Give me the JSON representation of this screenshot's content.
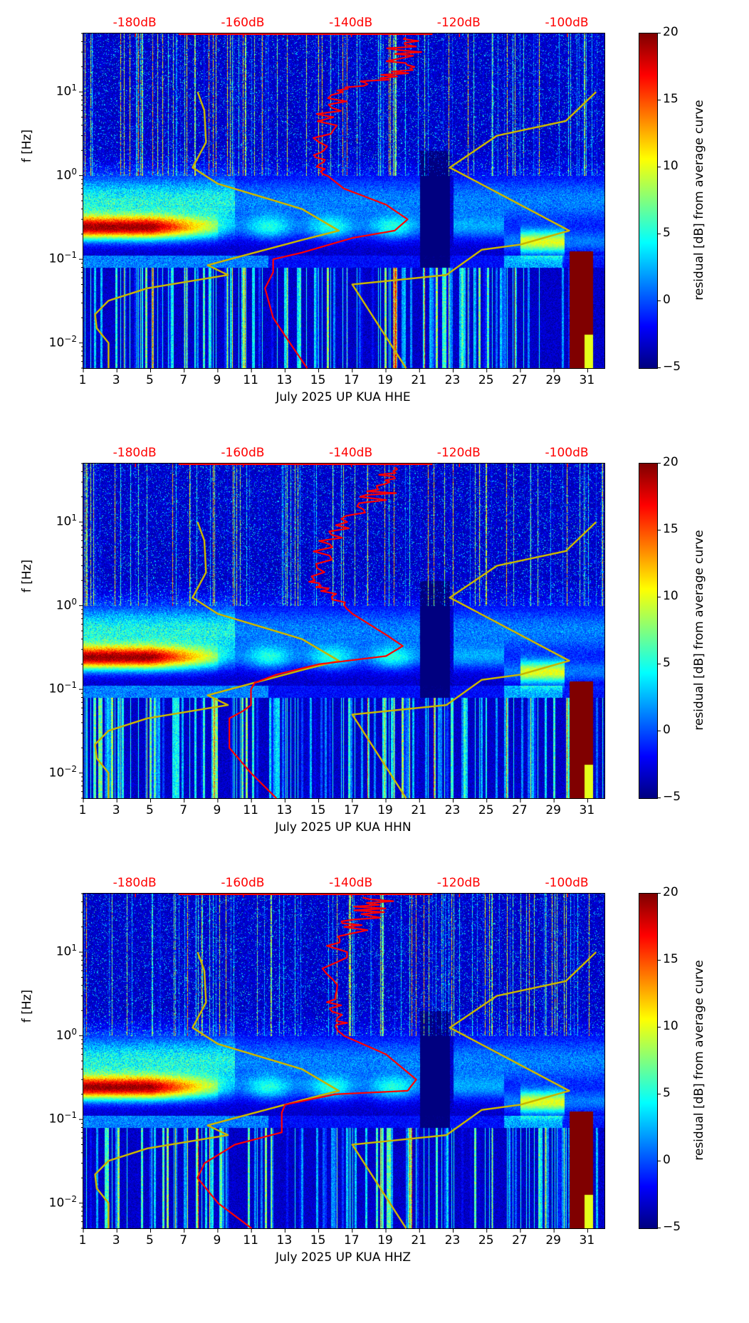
{
  "chart_data": [
    {
      "type": "heatmap",
      "title": "",
      "xlabel": "July 2025 UP KUA  HHE",
      "ylabel": "f [Hz]",
      "xlim": [
        1,
        32
      ],
      "ylim": [
        0.005,
        50
      ],
      "yscale": "log",
      "x_ticks": [
        "1",
        "3",
        "5",
        "7",
        "9",
        "11",
        "13",
        "15",
        "17",
        "19",
        "21",
        "23",
        "25",
        "27",
        "29",
        "31"
      ],
      "y_ticks": [
        {
          "value": 0.01,
          "base": "10",
          "exp": "−2"
        },
        {
          "value": 0.1,
          "base": "10",
          "exp": "−1"
        },
        {
          "value": 1,
          "base": "10",
          "exp": "0"
        },
        {
          "value": 10,
          "base": "10",
          "exp": "1"
        }
      ],
      "top_axis": {
        "labels": [
          "-180dB",
          "-160dB",
          "-140dB",
          "-120dB",
          "-100dB"
        ],
        "values": [
          -180,
          -160,
          -140,
          -120,
          -100
        ],
        "color": "#ff0000"
      },
      "colorbar": {
        "label": "residual [dB] from average curve",
        "range": [
          -5,
          20
        ],
        "ticks": [
          "−5",
          "0",
          "5",
          "10",
          "15",
          "20"
        ],
        "cmap": "jet"
      },
      "red_curve_db": {
        "f": [
          45,
          30,
          20,
          14,
          10,
          5,
          2,
          1.2,
          0.7,
          0.45,
          0.3,
          0.22,
          0.18,
          0.12,
          0.1,
          0.07,
          0.045,
          0.02,
          0.01,
          0.005
        ],
        "db": [
          -128,
          -130,
          -131,
          -134,
          -143,
          -144.5,
          -146,
          -146,
          -141.4,
          -133.6,
          -129.6,
          -132,
          -139.8,
          -149.2,
          -154.5,
          -154.5,
          -156,
          -154.5,
          -151.4,
          -148.2
        ]
      },
      "low_model_day": {
        "f": [
          10,
          6,
          2.5,
          1.25,
          0.8,
          0.4,
          0.22,
          0.17,
          0.1,
          0.085,
          0.065,
          0.045,
          0.032,
          0.022,
          0.015,
          0.01,
          0.005
        ],
        "day": [
          7.8,
          8.2,
          8.3,
          7.5,
          9,
          14,
          16.2,
          14,
          9.7,
          8.4,
          9.6,
          4.8,
          2.5,
          1.7,
          1.8,
          2.5,
          2.5
        ]
      },
      "high_model_day": {
        "f": [
          10,
          4.5,
          3,
          1.25,
          0.22,
          0.15,
          0.13,
          0.065,
          0.05,
          0.005
        ],
        "day": [
          31.5,
          29.7,
          25.6,
          22.8,
          29.9,
          27,
          24.7,
          22.6,
          17,
          20.2
        ]
      }
    },
    {
      "type": "heatmap",
      "title": "",
      "xlabel": "July 2025 UP KUA  HHN",
      "ylabel": "f [Hz]",
      "xlim": [
        1,
        32
      ],
      "ylim": [
        0.005,
        50
      ],
      "yscale": "log",
      "x_ticks": [
        "1",
        "3",
        "5",
        "7",
        "9",
        "11",
        "13",
        "15",
        "17",
        "19",
        "21",
        "23",
        "25",
        "27",
        "29",
        "31"
      ],
      "y_ticks": [
        {
          "value": 0.01,
          "base": "10",
          "exp": "−2"
        },
        {
          "value": 0.1,
          "base": "10",
          "exp": "−1"
        },
        {
          "value": 1,
          "base": "10",
          "exp": "0"
        },
        {
          "value": 10,
          "base": "10",
          "exp": "1"
        }
      ],
      "top_axis": {
        "labels": [
          "-180dB",
          "-160dB",
          "-140dB",
          "-120dB",
          "-100dB"
        ],
        "values": [
          -180,
          -160,
          -140,
          -120,
          -100
        ],
        "color": "#ff0000"
      },
      "colorbar": {
        "label": "residual [dB] from average curve",
        "range": [
          -5,
          20
        ],
        "ticks": [
          "−5",
          "0",
          "5",
          "10",
          "15",
          "20"
        ],
        "cmap": "jet"
      },
      "red_curve_db": {
        "f": [
          45,
          30,
          20,
          10,
          5,
          2,
          1.5,
          0.8,
          0.45,
          0.33,
          0.25,
          0.2,
          0.15,
          0.12,
          0.1,
          0.065,
          0.055,
          0.045,
          0.02,
          0.01,
          0.005
        ],
        "db": [
          -130,
          -132,
          -135,
          -142.3,
          -144.5,
          -146.7,
          -144.5,
          -139.8,
          -133.6,
          -130.5,
          -133.6,
          -146,
          -153.9,
          -157.9,
          -158.6,
          -158.6,
          -160.1,
          -162.6,
          -162.6,
          -158.6,
          -153.9
        ]
      },
      "low_model_day": {
        "f": [
          10,
          6,
          2.5,
          1.25,
          0.8,
          0.4,
          0.22,
          0.17,
          0.1,
          0.085,
          0.065,
          0.045,
          0.032,
          0.022,
          0.015,
          0.01,
          0.005
        ],
        "day": [
          7.8,
          8.2,
          8.3,
          7.5,
          9,
          14,
          16.2,
          14,
          9.7,
          8.4,
          9.6,
          4.8,
          2.5,
          1.7,
          1.8,
          2.5,
          2.5
        ]
      },
      "high_model_day": {
        "f": [
          10,
          4.5,
          3,
          1.25,
          0.22,
          0.15,
          0.13,
          0.065,
          0.05,
          0.005
        ],
        "day": [
          31.5,
          29.7,
          25.6,
          22.8,
          29.9,
          27,
          24.7,
          22.6,
          17,
          20.2
        ]
      }
    },
    {
      "type": "heatmap",
      "title": "",
      "xlabel": "July 2025 UP KUA  HHZ",
      "ylabel": "f [Hz]",
      "xlim": [
        1,
        32
      ],
      "ylim": [
        0.005,
        50
      ],
      "yscale": "log",
      "x_ticks": [
        "1",
        "3",
        "5",
        "7",
        "9",
        "11",
        "13",
        "15",
        "17",
        "19",
        "21",
        "23",
        "25",
        "27",
        "29",
        "31"
      ],
      "y_ticks": [
        {
          "value": 0.01,
          "base": "10",
          "exp": "−2"
        },
        {
          "value": 0.1,
          "base": "10",
          "exp": "−1"
        },
        {
          "value": 1,
          "base": "10",
          "exp": "0"
        },
        {
          "value": 10,
          "base": "10",
          "exp": "1"
        }
      ],
      "top_axis": {
        "labels": [
          "-180dB",
          "-160dB",
          "-140dB",
          "-120dB",
          "-100dB"
        ],
        "values": [
          -180,
          -160,
          -140,
          -120,
          -100
        ],
        "color": "#ff0000"
      },
      "colorbar": {
        "label": "residual [dB] from average curve",
        "range": [
          -5,
          20
        ],
        "ticks": [
          "−5",
          "0",
          "5",
          "10",
          "15",
          "20"
        ],
        "cmap": "jet"
      },
      "red_curve_db": {
        "f": [
          45,
          30,
          20,
          10,
          3,
          1.5,
          1,
          0.6,
          0.3,
          0.22,
          0.2,
          0.15,
          0.12,
          0.07,
          0.05,
          0.03,
          0.02,
          0.01,
          0.005
        ],
        "db": [
          -136,
          -137,
          -139,
          -143,
          -143.6,
          -142,
          -141.4,
          -133.6,
          -128,
          -129.6,
          -143,
          -152.3,
          -152.9,
          -152.9,
          -161.6,
          -167.2,
          -168.5,
          -164.7,
          -158.5
        ]
      },
      "low_model_day": {
        "f": [
          10,
          6,
          2.5,
          1.25,
          0.8,
          0.4,
          0.22,
          0.17,
          0.1,
          0.085,
          0.065,
          0.045,
          0.032,
          0.022,
          0.015,
          0.01,
          0.005
        ],
        "day": [
          7.8,
          8.2,
          8.3,
          7.5,
          9,
          14,
          16.2,
          14,
          9.7,
          8.4,
          9.6,
          4.8,
          2.5,
          1.7,
          1.8,
          2.5,
          2.5
        ]
      },
      "high_model_day": {
        "f": [
          10,
          4.5,
          3,
          1.25,
          0.22,
          0.15,
          0.13,
          0.065,
          0.05,
          0.005
        ],
        "day": [
          31.5,
          29.7,
          25.6,
          22.8,
          29.9,
          27,
          24.7,
          22.6,
          17,
          20.2
        ]
      }
    }
  ],
  "colors": {
    "red_curve": "#ff0000",
    "model_curves": "#c8b400",
    "axis_labels_top": "#ff0000"
  }
}
